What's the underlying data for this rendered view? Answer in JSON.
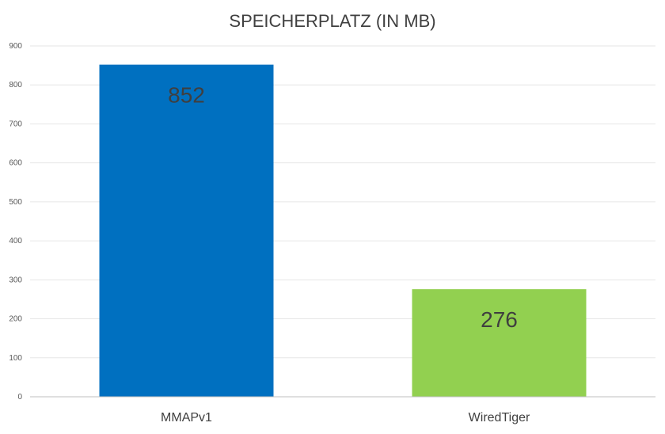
{
  "chart_data": {
    "type": "bar",
    "title": "SPEICHERPLATZ (IN MB)",
    "categories": [
      "MMAPv1",
      "WiredTiger"
    ],
    "values": [
      852,
      276
    ],
    "data_labels": [
      "852",
      "276"
    ],
    "ylim": [
      0,
      900
    ],
    "yticks": [
      0,
      100,
      200,
      300,
      400,
      500,
      600,
      700,
      800,
      900
    ],
    "ytick_labels": [
      "0",
      "100",
      "200",
      "300",
      "400",
      "500",
      "600",
      "700",
      "800",
      "900"
    ],
    "grid": true,
    "legend": "none",
    "colors": [
      "#0070c0",
      "#92d050"
    ]
  }
}
